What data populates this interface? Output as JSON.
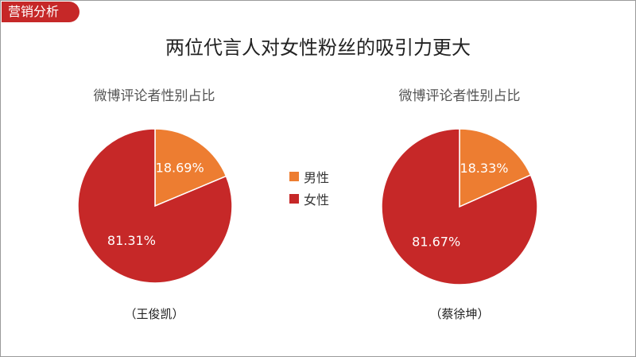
{
  "section_tag": "营销分析",
  "main_title": "两位代言人对女性粉丝的吸引力更大",
  "chart_data": [
    {
      "type": "pie",
      "title": "微博评论者性别占比",
      "caption": "（王俊凯）",
      "slices": [
        {
          "label": "男性",
          "value": 18.69,
          "text": "18.69%",
          "color": "#ed7d31"
        },
        {
          "label": "女性",
          "value": 81.31,
          "text": "81.31%",
          "color": "#c62828"
        }
      ]
    },
    {
      "type": "pie",
      "title": "微博评论者性别占比",
      "caption": "（蔡徐坤）",
      "slices": [
        {
          "label": "男性",
          "value": 18.33,
          "text": "18.33%",
          "color": "#ed7d31"
        },
        {
          "label": "女性",
          "value": 81.67,
          "text": "81.67%",
          "color": "#c62828"
        }
      ]
    }
  ],
  "legend": [
    {
      "label": "男性",
      "color": "#ed7d31"
    },
    {
      "label": "女性",
      "color": "#c62828"
    }
  ]
}
